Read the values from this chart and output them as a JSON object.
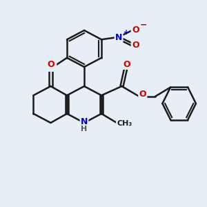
{
  "bg_color": "#e8eef5",
  "bond_color": "#1a1a1a",
  "bond_width": 1.8,
  "atom_colors": {
    "N": "#0000cc",
    "O": "#cc0000",
    "Cl": "#00aa00",
    "H": "#555555",
    "C": "#1a1a1a"
  },
  "font_size": 9
}
